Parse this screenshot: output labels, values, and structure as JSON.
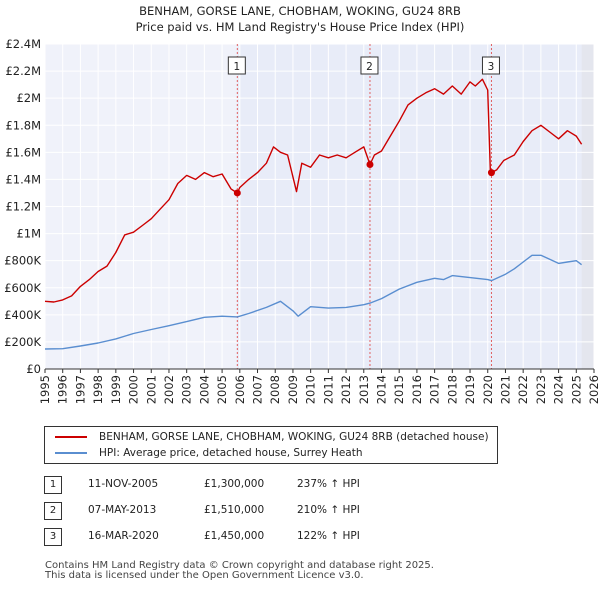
{
  "title_line1": "BENHAM, GORSE LANE, CHOBHAM, WOKING, GU24 8RB",
  "title_line2": "Price paid vs. HM Land Registry's House Price Index (HPI)",
  "chart_data": {
    "type": "line",
    "title": "BENHAM, GORSE LANE, CHOBHAM, WOKING, GU24 8RB",
    "subtitle": "Price paid vs. HM Land Registry's House Price Index (HPI)",
    "xlabel": "",
    "ylabel": "",
    "xlim": [
      1995,
      2026
    ],
    "ylim": [
      0,
      2400000
    ],
    "yticks": [
      0,
      200000,
      400000,
      600000,
      800000,
      1000000,
      1200000,
      1400000,
      1600000,
      1800000,
      2000000,
      2200000,
      2400000
    ],
    "ytick_labels": [
      "£0",
      "£200K",
      "£400K",
      "£600K",
      "£800K",
      "£1M",
      "£1.2M",
      "£1.4M",
      "£1.6M",
      "£1.8M",
      "£2M",
      "£2.2M",
      "£2.4M"
    ],
    "xticks": [
      "1995",
      "1996",
      "1997",
      "1998",
      "1999",
      "2000",
      "2001",
      "2002",
      "2003",
      "2004",
      "2005",
      "2006",
      "2007",
      "2008",
      "2009",
      "2010",
      "2011",
      "2012",
      "2013",
      "2014",
      "2015",
      "2016",
      "2017",
      "2018",
      "2019",
      "2020",
      "2021",
      "2022",
      "2023",
      "2024",
      "2025",
      "2026"
    ],
    "grid": true,
    "legend_position": "below",
    "series": [
      {
        "name": "BENHAM, GORSE LANE, CHOBHAM, WOKING, GU24 8RB (detached house)",
        "color": "#cc0000",
        "x": [
          1995.0,
          1995.5,
          1996.0,
          1996.5,
          1997.0,
          1997.5,
          1998.0,
          1998.5,
          1999.0,
          1999.5,
          2000.0,
          2000.5,
          2001.0,
          2001.5,
          2002.0,
          2002.5,
          2003.0,
          2003.5,
          2004.0,
          2004.5,
          2005.0,
          2005.5,
          2005.86,
          2006.0,
          2006.5,
          2007.0,
          2007.5,
          2007.9,
          2008.3,
          2008.7,
          2009.2,
          2009.5,
          2010.0,
          2010.5,
          2011.0,
          2011.5,
          2012.0,
          2012.5,
          2013.0,
          2013.35,
          2013.6,
          2014.0,
          2014.5,
          2015.0,
          2015.5,
          2016.0,
          2016.5,
          2017.0,
          2017.5,
          2018.0,
          2018.5,
          2019.0,
          2019.3,
          2019.7,
          2020.0,
          2020.15,
          2020.21,
          2020.5,
          2020.9,
          2021.5,
          2022.0,
          2022.5,
          2023.0,
          2023.5,
          2024.0,
          2024.5,
          2025.0,
          2025.3
        ],
        "values": [
          500000,
          495000,
          510000,
          540000,
          610000,
          660000,
          720000,
          760000,
          860000,
          990000,
          1010000,
          1060000,
          1110000,
          1180000,
          1250000,
          1370000,
          1430000,
          1400000,
          1450000,
          1420000,
          1440000,
          1330000,
          1300000,
          1340000,
          1400000,
          1450000,
          1520000,
          1640000,
          1600000,
          1580000,
          1310000,
          1520000,
          1490000,
          1580000,
          1560000,
          1580000,
          1560000,
          1600000,
          1640000,
          1510000,
          1580000,
          1610000,
          1720000,
          1830000,
          1950000,
          2000000,
          2040000,
          2070000,
          2030000,
          2090000,
          2030000,
          2120000,
          2090000,
          2140000,
          2060000,
          1450000,
          1450000,
          1470000,
          1540000,
          1580000,
          1680000,
          1760000,
          1800000,
          1750000,
          1700000,
          1760000,
          1720000,
          1660000
        ]
      },
      {
        "name": "HPI: Average price, detached house, Surrey Heath",
        "color": "#5a8ed0",
        "x": [
          1995.0,
          1996.0,
          1997.0,
          1998.0,
          1999.0,
          2000.0,
          2001.0,
          2002.0,
          2003.0,
          2004.0,
          2005.0,
          2005.86,
          2006.5,
          2007.5,
          2008.3,
          2009.0,
          2009.3,
          2010.0,
          2011.0,
          2012.0,
          2013.0,
          2013.35,
          2014.0,
          2015.0,
          2016.0,
          2017.0,
          2017.5,
          2018.0,
          2019.0,
          2020.0,
          2020.21,
          2021.0,
          2021.5,
          2022.0,
          2022.5,
          2023.0,
          2023.5,
          2024.0,
          2024.5,
          2025.0,
          2025.3
        ],
        "values": [
          148000,
          150000,
          170000,
          192000,
          222000,
          262000,
          292000,
          320000,
          350000,
          382000,
          390000,
          385000,
          410000,
          455000,
          500000,
          430000,
          390000,
          460000,
          450000,
          455000,
          475000,
          487000,
          520000,
          590000,
          640000,
          670000,
          660000,
          690000,
          675000,
          660000,
          653000,
          700000,
          740000,
          790000,
          840000,
          840000,
          810000,
          780000,
          790000,
          800000,
          770000
        ]
      }
    ],
    "annotations": [
      {
        "label": "1",
        "x": 2005.86,
        "value": 1300000
      },
      {
        "label": "2",
        "x": 2013.35,
        "value": 1510000
      },
      {
        "label": "3",
        "x": 2020.21,
        "value": 1450000
      }
    ],
    "shaded_region_from": 2025.3
  },
  "legend": {
    "items": [
      {
        "label": "BENHAM, GORSE LANE, CHOBHAM, WOKING, GU24 8RB (detached house)",
        "color": "#cc0000"
      },
      {
        "label": "HPI: Average price, detached house, Surrey Heath",
        "color": "#5a8ed0"
      }
    ]
  },
  "sales": [
    {
      "num": "1",
      "date": "11-NOV-2005",
      "price": "£1,300,000",
      "hpi": "237% ↑ HPI"
    },
    {
      "num": "2",
      "date": "07-MAY-2013",
      "price": "£1,510,000",
      "hpi": "210% ↑ HPI"
    },
    {
      "num": "3",
      "date": "16-MAR-2020",
      "price": "£1,450,000",
      "hpi": "122% ↑ HPI"
    }
  ],
  "footer_line1": "Contains HM Land Registry data © Crown copyright and database right 2025.",
  "footer_line2": "This data is licensed under the Open Government Licence v3.0."
}
